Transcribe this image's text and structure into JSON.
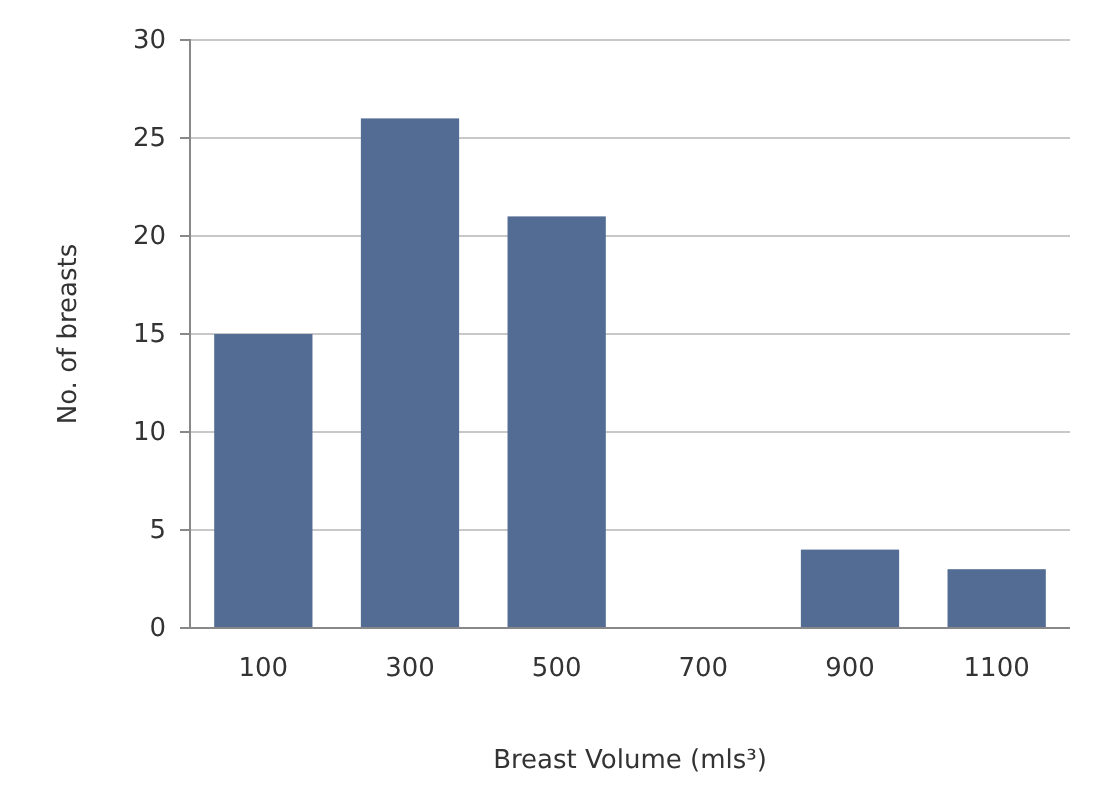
{
  "chart_data": {
    "type": "bar",
    "categories": [
      "100",
      "300",
      "500",
      "700",
      "900",
      "1100"
    ],
    "values": [
      15,
      26,
      21,
      0,
      4,
      3
    ],
    "color": "#536c93",
    "xlabel": "Breast Volume (mls³)",
    "ylabel": "No. of breasts",
    "ylim": [
      0,
      30
    ],
    "yticks": [
      0,
      5,
      10,
      15,
      20,
      25,
      30
    ],
    "grid": "y"
  }
}
